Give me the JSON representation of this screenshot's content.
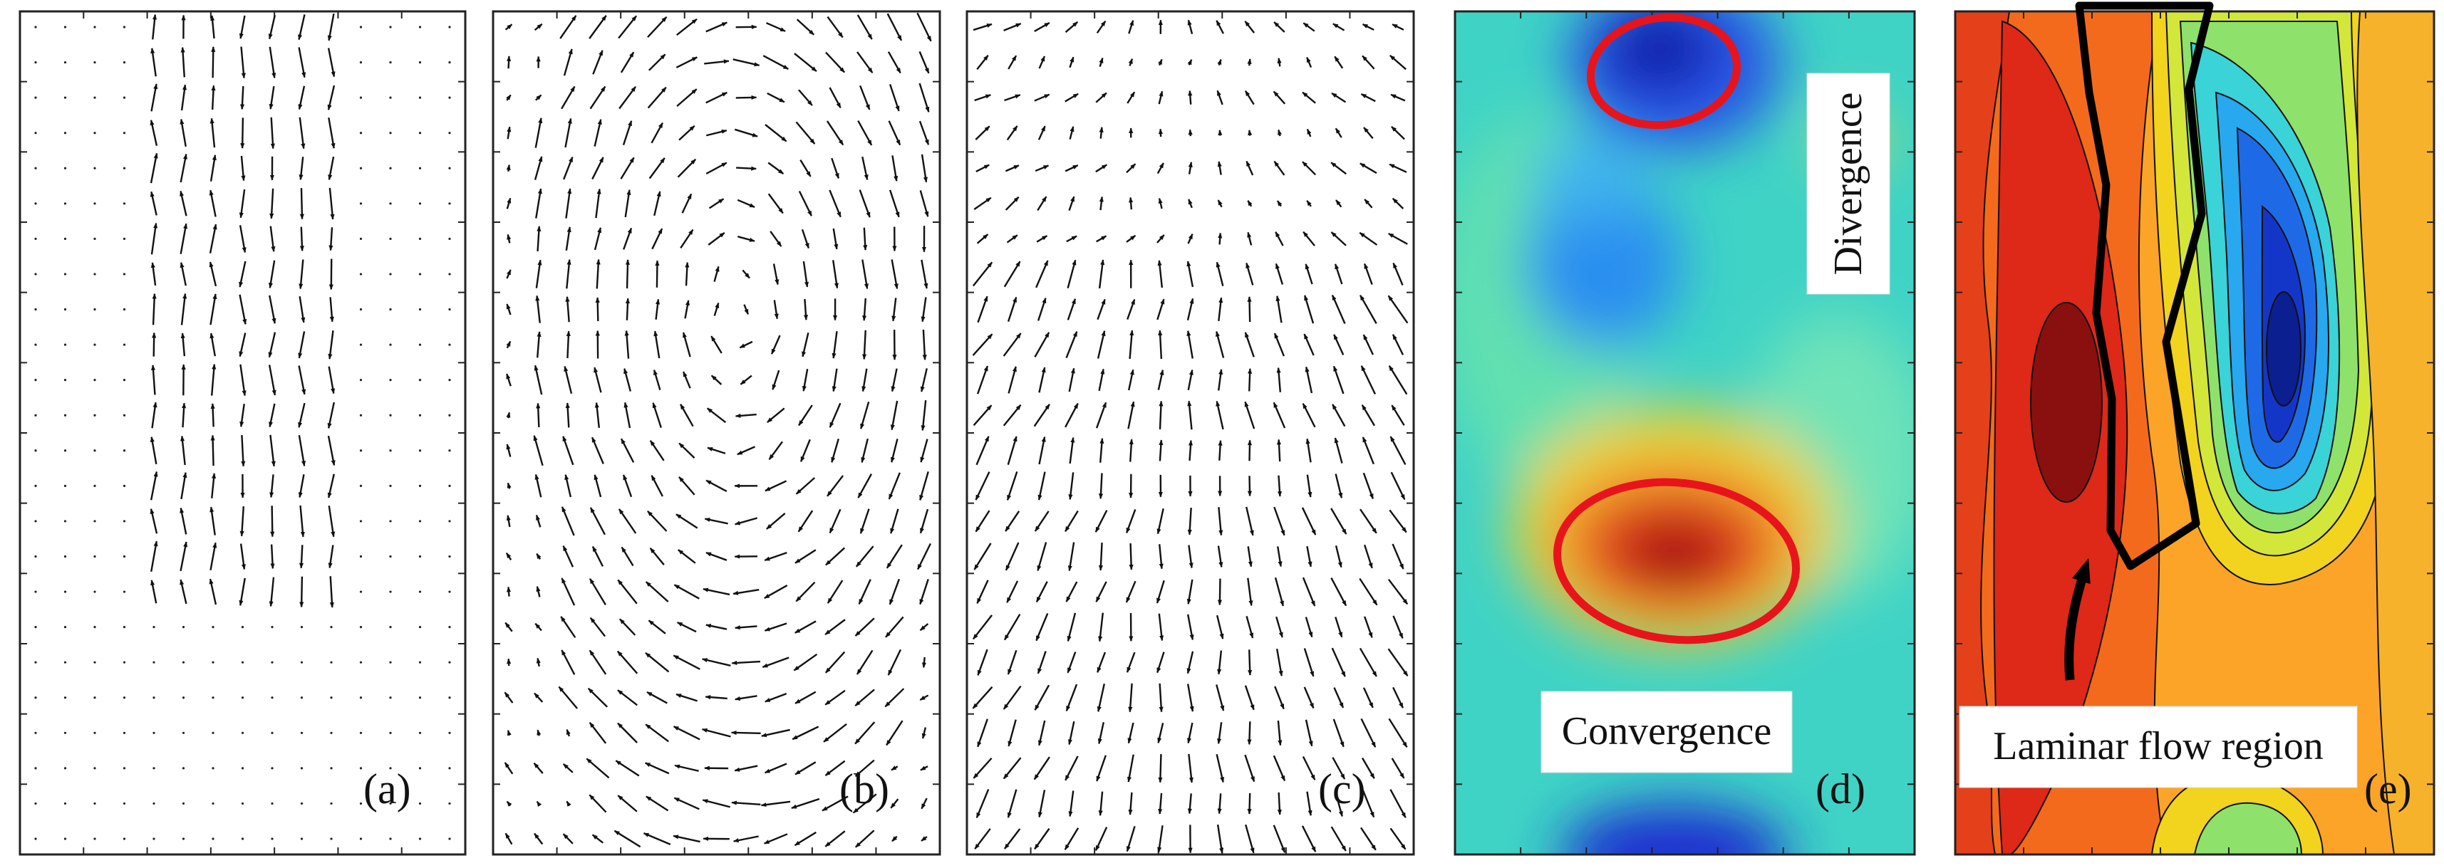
{
  "panels": [
    {
      "label": "(a)",
      "kind": "vector-field"
    },
    {
      "label": "(b)",
      "kind": "vector-field"
    },
    {
      "label": "(c)",
      "kind": "vector-field"
    },
    {
      "label": "(d)",
      "kind": "contour-map"
    },
    {
      "label": "(e)",
      "kind": "contour-map"
    }
  ],
  "annotations": {
    "divergence": "Divergence",
    "convergence": "Convergence",
    "laminar": "Laminar flow region"
  },
  "colors": {
    "highlight_ellipse": "#e8141c",
    "laminar_outline": "#000000",
    "colormap": "jet"
  }
}
